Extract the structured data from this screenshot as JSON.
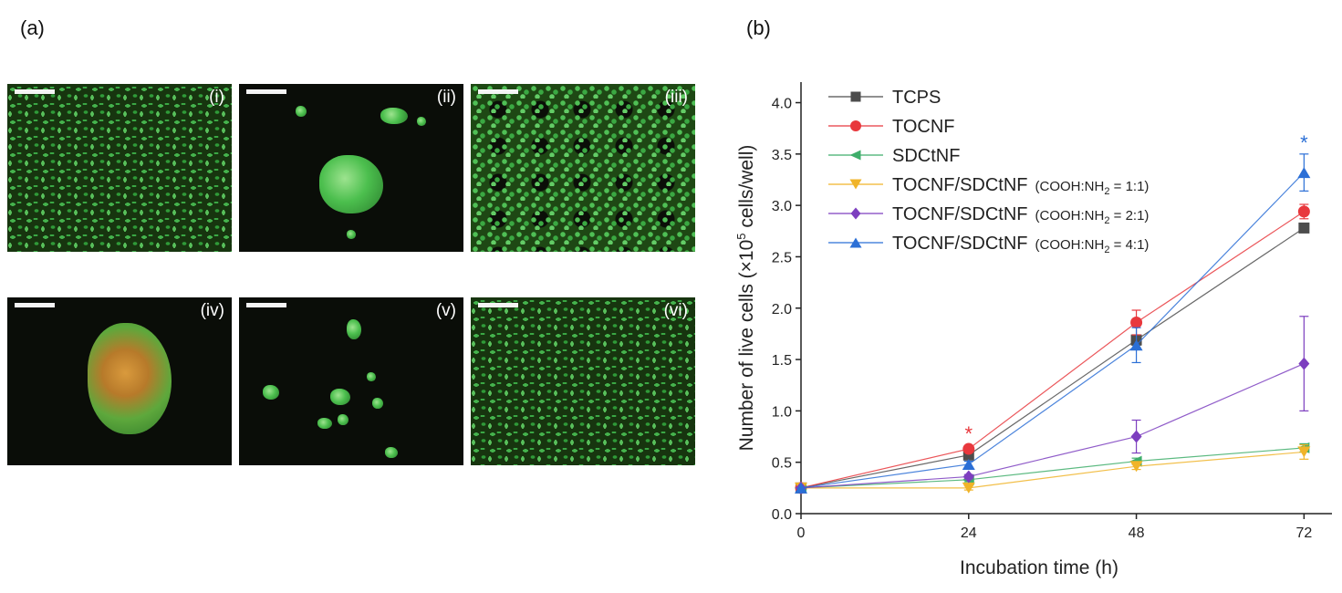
{
  "panels": {
    "a_label": "(a)",
    "b_label": "(b)",
    "micrographs": [
      "(i)",
      "(ii)",
      "(iii)",
      "(iv)",
      "(v)",
      "(vi)"
    ]
  },
  "colors": {
    "TCPS": "#4d4d4d",
    "TOCNF": "#e8383d",
    "SDCtNF": "#3fae6b",
    "ratio_1_1": "#f0b429",
    "ratio_2_1": "#7d3fbf",
    "ratio_4_1": "#2b6fd6",
    "asterisk_red": "#e8383d",
    "asterisk_blue": "#2b6fd6"
  },
  "chart_data": {
    "type": "line",
    "xlabel": "Incubation time (h)",
    "ylabel": "Number of live cells (×10",
    "ylabel_sup": "5",
    "ylabel_tail": " cells/well)",
    "x": [
      0,
      24,
      48,
      72
    ],
    "xlim": [
      0,
      76
    ],
    "ylim": [
      0,
      4.2
    ],
    "xticks": [
      "0",
      "24",
      "48",
      "72"
    ],
    "yticks": [
      "0.0",
      "0.5",
      "1.0",
      "1.5",
      "2.0",
      "2.5",
      "3.0",
      "3.5",
      "4.0"
    ],
    "legend_placement": "top-left",
    "series": [
      {
        "name": "TCPS",
        "label_suffix": "",
        "marker": "square",
        "values": [
          0.25,
          0.57,
          1.69,
          2.78
        ],
        "errors": [
          0.01,
          0.02,
          0.05,
          0.03
        ]
      },
      {
        "name": "TOCNF",
        "label_suffix": "",
        "marker": "circle",
        "values": [
          0.25,
          0.63,
          1.86,
          2.94
        ],
        "errors": [
          0.01,
          0.03,
          0.12,
          0.07
        ]
      },
      {
        "name": "SDCtNF",
        "label_suffix": "",
        "marker": "triangle-left",
        "values": [
          0.25,
          0.33,
          0.51,
          0.64
        ],
        "errors": [
          0.01,
          0.02,
          0.03,
          0.04
        ]
      },
      {
        "name": "TOCNF/SDCtNF",
        "label_suffix": "(COOH:NH",
        "label_sub": "2",
        "label_end": " = 1:1)",
        "marker": "triangle-down",
        "values": [
          0.25,
          0.25,
          0.46,
          0.6
        ],
        "errors": [
          0.01,
          0.02,
          0.03,
          0.07
        ]
      },
      {
        "name": "TOCNF/SDCtNF",
        "label_suffix": "(COOH:NH",
        "label_sub": "2",
        "label_end": " = 2:1)",
        "marker": "diamond",
        "values": [
          0.25,
          0.36,
          0.75,
          1.46
        ],
        "errors": [
          0.01,
          0.02,
          0.16,
          0.46
        ]
      },
      {
        "name": "TOCNF/SDCtNF",
        "label_suffix": "(COOH:NH",
        "label_sub": "2",
        "label_end": " = 4:1)",
        "marker": "triangle-up",
        "values": [
          0.25,
          0.48,
          1.64,
          3.32
        ],
        "errors": [
          0.01,
          0.03,
          0.17,
          0.18
        ]
      }
    ],
    "annotations": [
      {
        "text": "*",
        "x": 24,
        "y": 0.8,
        "color": "red"
      },
      {
        "text": "*",
        "x": 72,
        "y": 3.63,
        "color": "blue"
      }
    ]
  }
}
